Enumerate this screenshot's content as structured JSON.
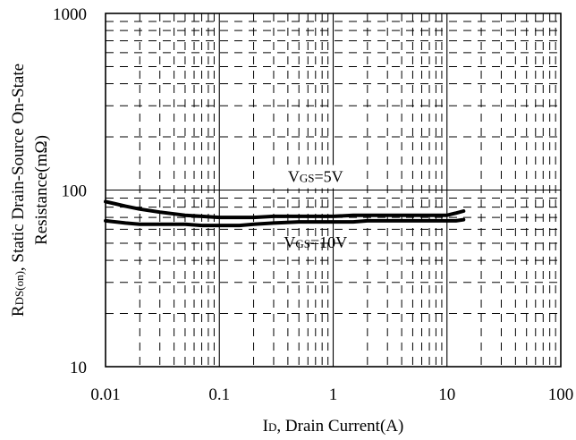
{
  "chart_data": {
    "type": "line",
    "x_scale": "log",
    "y_scale": "log",
    "xlim": [
      0.01,
      100
    ],
    "ylim": [
      10,
      1000
    ],
    "grid": true,
    "x_ticks": [
      "0.01",
      "0.1",
      "1",
      "10",
      "100"
    ],
    "y_ticks": [
      "10",
      "100",
      "1000"
    ],
    "xlabel": {
      "main": "I",
      "sub": "D",
      "rest": ", Drain Current(A)"
    },
    "ylabel": {
      "line1_main": "R",
      "line1_sub": "DS(on)",
      "line1_rest": ", Static Drain-Source On-State",
      "line2": "Resistance(mΩ)"
    },
    "series": [
      {
        "name": "VGS=5V",
        "label_main": "V",
        "label_sub": "GS",
        "label_rest": "=5V",
        "x": [
          0.01,
          0.015,
          0.02,
          0.03,
          0.05,
          0.07,
          0.1,
          0.15,
          0.2,
          0.3,
          0.5,
          0.7,
          1,
          1.5,
          2,
          3,
          5,
          7,
          10,
          12,
          14
        ],
        "y": [
          86,
          81,
          78,
          75,
          72,
          71,
          70,
          70,
          70,
          71,
          71,
          71,
          71,
          72,
          72,
          72,
          72,
          72,
          72,
          74,
          76
        ]
      },
      {
        "name": "VGS=10V",
        "label_main": "V",
        "label_sub": "GS",
        "label_rest": "=10V",
        "x": [
          0.01,
          0.015,
          0.02,
          0.03,
          0.05,
          0.07,
          0.1,
          0.15,
          0.2,
          0.3,
          0.5,
          0.7,
          1,
          1.5,
          2,
          3,
          5,
          7,
          10,
          12,
          14
        ],
        "y": [
          67,
          65,
          64,
          64,
          64,
          63,
          63,
          63,
          64,
          65,
          66,
          66,
          66,
          66,
          67,
          67,
          67,
          67,
          67,
          67,
          68
        ]
      }
    ]
  }
}
